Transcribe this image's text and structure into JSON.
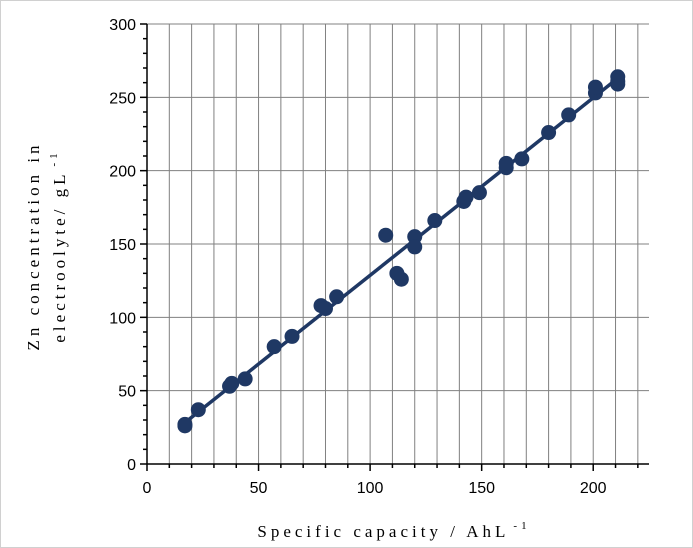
{
  "chart_data": {
    "type": "scatter",
    "xlabel_main": "Specific capacity / AhL",
    "xlabel_sup": "-1",
    "ylabel_line1": "Zn concentration in",
    "ylabel_line2_main": "electroolyte/ gL",
    "ylabel_line2_sup": "-1",
    "xlim": [
      0,
      225
    ],
    "ylim": [
      0,
      300
    ],
    "xticks": [
      0,
      50,
      100,
      150,
      200
    ],
    "yticks": [
      0,
      50,
      100,
      150,
      200,
      250,
      300
    ],
    "grid": true,
    "point_color": "#1f3864",
    "line_color": "#1f3864",
    "points": [
      {
        "x": 17,
        "y": 27
      },
      {
        "x": 17,
        "y": 26
      },
      {
        "x": 23,
        "y": 37
      },
      {
        "x": 37,
        "y": 53
      },
      {
        "x": 38,
        "y": 55
      },
      {
        "x": 44,
        "y": 58
      },
      {
        "x": 57,
        "y": 80
      },
      {
        "x": 65,
        "y": 87
      },
      {
        "x": 78,
        "y": 108
      },
      {
        "x": 80,
        "y": 106
      },
      {
        "x": 85,
        "y": 114
      },
      {
        "x": 107,
        "y": 156
      },
      {
        "x": 112,
        "y": 130
      },
      {
        "x": 114,
        "y": 126
      },
      {
        "x": 120,
        "y": 155
      },
      {
        "x": 120,
        "y": 148
      },
      {
        "x": 129,
        "y": 166
      },
      {
        "x": 142,
        "y": 179
      },
      {
        "x": 143,
        "y": 182
      },
      {
        "x": 149,
        "y": 185
      },
      {
        "x": 161,
        "y": 202
      },
      {
        "x": 161,
        "y": 205
      },
      {
        "x": 168,
        "y": 208
      },
      {
        "x": 180,
        "y": 226
      },
      {
        "x": 189,
        "y": 238
      },
      {
        "x": 201,
        "y": 253
      },
      {
        "x": 201,
        "y": 257
      },
      {
        "x": 211,
        "y": 259
      },
      {
        "x": 211,
        "y": 264
      },
      {
        "x": 211,
        "y": 261
      }
    ],
    "trendline": [
      {
        "x": 16,
        "y": 27
      },
      {
        "x": 211,
        "y": 263
      }
    ]
  }
}
